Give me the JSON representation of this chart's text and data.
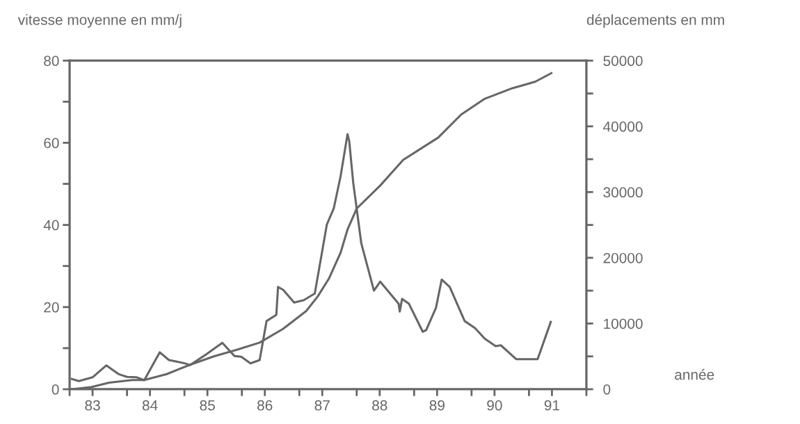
{
  "chart_data": {
    "type": "line",
    "ylabel": "vitesse moyenne en mm/j",
    "y2label": "déplacements en mm",
    "xlabel": "année",
    "xlim": [
      83,
      92
    ],
    "xticks": [
      {
        "value": 83,
        "label": null
      },
      {
        "value": 83.4,
        "label": "83"
      },
      {
        "value": 84,
        "label": null
      },
      {
        "value": 84.4,
        "label": "84"
      },
      {
        "value": 85,
        "label": null
      },
      {
        "value": 85.4,
        "label": "85"
      },
      {
        "value": 86,
        "label": null
      },
      {
        "value": 86.4,
        "label": "86"
      },
      {
        "value": 87,
        "label": null
      },
      {
        "value": 87.4,
        "label": "87"
      },
      {
        "value": 88,
        "label": null
      },
      {
        "value": 88.4,
        "label": "88"
      },
      {
        "value": 89,
        "label": null
      },
      {
        "value": 89.4,
        "label": "89"
      },
      {
        "value": 90,
        "label": null
      },
      {
        "value": 90.4,
        "label": "90"
      },
      {
        "value": 91,
        "label": null
      },
      {
        "value": 91.4,
        "label": "91"
      },
      {
        "value": 92,
        "label": null
      }
    ],
    "ylim": [
      0,
      80
    ],
    "yticks": [
      0,
      {
        "value": 10,
        "label": null
      },
      20,
      {
        "value": 30,
        "label": null
      },
      40,
      {
        "value": 50,
        "label": null
      },
      60,
      {
        "value": 70,
        "label": null
      },
      80
    ],
    "y2lim": [
      0,
      50000
    ],
    "y2ticks": [
      0,
      {
        "value": 5000,
        "label": null
      },
      10000,
      {
        "value": 15000,
        "label": null
      },
      20000,
      {
        "value": 25000,
        "label": null
      },
      30000,
      {
        "value": 35000,
        "label": null
      },
      40000,
      {
        "value": 45000,
        "label": null
      },
      50000
    ],
    "marker": "none",
    "line_style": "solid",
    "series": [
      {
        "color": "#666666",
        "x": [
          83.04,
          83.16,
          83.4,
          83.64,
          83.85,
          84.0,
          84.17,
          84.3,
          84.57,
          84.73,
          84.98,
          85.1,
          85.38,
          85.54,
          85.66,
          85.87,
          85.99,
          86.15,
          86.31,
          86.43,
          86.6,
          86.63,
          86.72,
          86.91,
          87.08,
          87.27,
          87.48,
          87.6,
          87.72,
          87.84,
          87.87,
          87.94,
          88.08,
          88.3,
          88.41,
          88.73,
          88.75,
          88.79,
          88.91,
          89.15,
          89.21,
          89.38,
          89.48,
          89.62,
          89.88,
          90.06,
          90.23,
          90.42,
          90.51,
          90.78,
          91.15,
          91.38
        ],
        "values": [
          2.5,
          2.0,
          2.9,
          5.8,
          3.7,
          3.0,
          2.9,
          2.2,
          9.0,
          7.1,
          6.4,
          5.9,
          8.5,
          10.1,
          11.3,
          8.1,
          7.9,
          6.3,
          7.1,
          16.6,
          18.1,
          24.9,
          24.2,
          21.1,
          21.7,
          23.3,
          40.1,
          44.0,
          51.9,
          62.1,
          60.4,
          50.2,
          35.5,
          24.0,
          26.2,
          20.8,
          18.9,
          22.0,
          20.8,
          14.0,
          14.4,
          19.8,
          26.7,
          24.9,
          16.6,
          14.9,
          12.3,
          10.5,
          10.7,
          7.3,
          7.3,
          16.4
        ]
      },
      {
        "color": "#666666",
        "axis": "y2",
        "x": [
          83.04,
          83.36,
          83.69,
          84.09,
          84.3,
          84.69,
          85.09,
          85.51,
          85.91,
          86.31,
          86.72,
          87.12,
          87.32,
          87.52,
          87.72,
          87.84,
          88.0,
          88.41,
          88.81,
          89.42,
          89.82,
          90.23,
          90.71,
          91.11,
          91.39
        ],
        "values": [
          0,
          300,
          1000,
          1400,
          1400,
          2300,
          3700,
          5000,
          6000,
          7100,
          9200,
          11900,
          14100,
          16900,
          20800,
          24300,
          27500,
          31000,
          34900,
          38300,
          41800,
          44200,
          45800,
          46800,
          48100
        ]
      }
    ]
  }
}
